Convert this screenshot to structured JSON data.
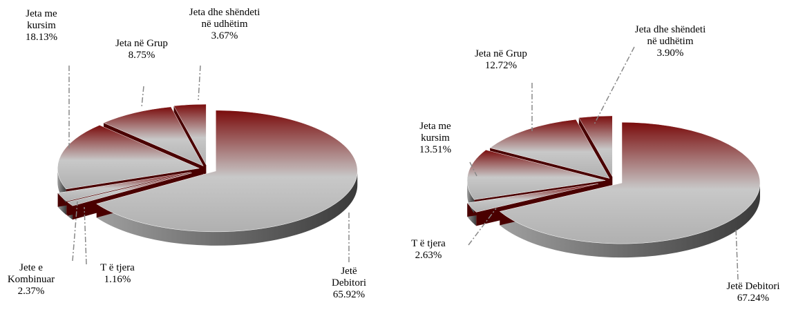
{
  "chart_data": [
    {
      "type": "pie3d",
      "categories": [
        "Jetë Debitori",
        "T ë tjera",
        "Jete e Kombinuar",
        "Jeta me kursim",
        "Jeta në Grup",
        "Jeta dhe shëndeti në udhëtim"
      ],
      "values": [
        65.92,
        1.16,
        2.37,
        18.13,
        8.75,
        3.67
      ],
      "value_labels": [
        "65.92%",
        "1.16%",
        "2.37%",
        "18.13%",
        "8.75%",
        "3.67%"
      ],
      "color": "#7a0c0c"
    },
    {
      "type": "pie3d",
      "categories": [
        "Jetë Debitori",
        "T ë tjera",
        "Jeta me kursim",
        "Jeta në Grup",
        "Jeta dhe shëndeti në udhëtim"
      ],
      "values": [
        67.24,
        2.63,
        13.51,
        12.72,
        3.9
      ],
      "value_labels": [
        "67.24%",
        "2.63%",
        "13.51%",
        "12.72%",
        "3.90%"
      ],
      "color": "#7a0c0c"
    }
  ]
}
